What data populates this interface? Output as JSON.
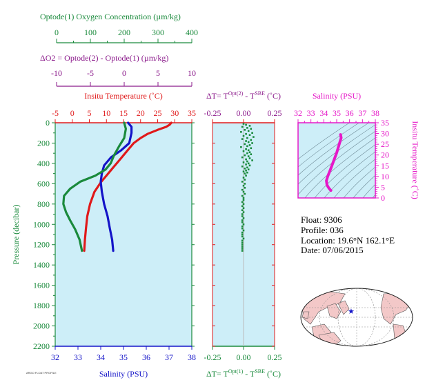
{
  "info": {
    "float": "Float: 9306",
    "profile": "Profile: 036",
    "location": "Location: 19.6°N 162.1°E",
    "date": "Date: 07/06/2015"
  },
  "footer_text": "ARGO FLOAT PROFILE",
  "colors": {
    "oxygen": "#1a8a3c",
    "delta_o2": "#8b1a8b",
    "temperature": "#e0191a",
    "salinity": "#1414c8",
    "inset": "#e619c8",
    "panel_bg": "#cdeef8",
    "map_land": "#f3c8c8",
    "map_ocean": "#ffffff"
  },
  "chart_data": [
    {
      "type": "line",
      "title": "",
      "ylabel": "Pressure (decibar)",
      "ylim": [
        2200,
        0
      ],
      "yticks": [
        0,
        200,
        400,
        600,
        800,
        1000,
        1200,
        1400,
        1600,
        1800,
        2000,
        2200
      ],
      "axes": {
        "oxygen": {
          "label": "Optode(1) Oxygen Concentration (µm/kg)",
          "lim": [
            0,
            400
          ],
          "ticks": [
            0,
            100,
            200,
            300,
            400
          ]
        },
        "delta_o2": {
          "label": "ΔO2 = Optode(2) - Optode(1)  (µm/kg)",
          "lim": [
            -10,
            10
          ],
          "ticks": [
            -10,
            -5,
            0,
            5,
            10
          ]
        },
        "temperature": {
          "label": "Insitu Temperature (˚C)",
          "lim": [
            -5,
            35
          ],
          "ticks": [
            -5,
            0,
            5,
            10,
            15,
            20,
            25,
            30,
            35
          ]
        },
        "salinity": {
          "label": "Salinity (PSU)",
          "lim": [
            32,
            38
          ],
          "ticks": [
            32,
            33,
            34,
            35,
            36,
            37,
            38
          ]
        }
      },
      "series": [
        {
          "name": "Insitu Temperature (˚C)",
          "axis": "temperature",
          "points": [
            [
              29,
              0
            ],
            [
              28.5,
              20
            ],
            [
              27.5,
              40
            ],
            [
              25,
              70
            ],
            [
              22,
              110
            ],
            [
              20,
              150
            ],
            [
              18,
              200
            ],
            [
              16,
              280
            ],
            [
              14,
              360
            ],
            [
              12,
              440
            ],
            [
              10,
              520
            ],
            [
              8.5,
              580
            ],
            [
              6.5,
              680
            ],
            [
              5.2,
              800
            ],
            [
              4.4,
              920
            ],
            [
              4.0,
              1040
            ],
            [
              3.7,
              1150
            ],
            [
              3.5,
              1260
            ]
          ]
        },
        {
          "name": "Salinity (PSU)",
          "axis": "salinity",
          "points": [
            [
              35.2,
              0
            ],
            [
              35.35,
              40
            ],
            [
              35.35,
              100
            ],
            [
              35.25,
              200
            ],
            [
              34.9,
              270
            ],
            [
              34.45,
              340
            ],
            [
              34.15,
              420
            ],
            [
              34.05,
              500
            ],
            [
              34.0,
              580
            ],
            [
              34.05,
              680
            ],
            [
              34.15,
              800
            ],
            [
              34.3,
              920
            ],
            [
              34.4,
              1040
            ],
            [
              34.5,
              1150
            ],
            [
              34.55,
              1260
            ]
          ]
        },
        {
          "name": "Optode(1) Oxygen Concentration (µm/kg)",
          "axis": "oxygen",
          "points": [
            [
              200,
              0
            ],
            [
              205,
              60
            ],
            [
              200,
              150
            ],
            [
              185,
              230
            ],
            [
              170,
              320
            ],
            [
              160,
              400
            ],
            [
              145,
              460
            ],
            [
              115,
              520
            ],
            [
              70,
              580
            ],
            [
              40,
              650
            ],
            [
              22,
              720
            ],
            [
              20,
              800
            ],
            [
              28,
              880
            ],
            [
              40,
              960
            ],
            [
              55,
              1050
            ],
            [
              68,
              1150
            ],
            [
              75,
              1260
            ]
          ]
        }
      ]
    },
    {
      "type": "scatter",
      "title": "ΔT= T^Opt(2) - T^SBE (˚C)",
      "xlabel": "ΔT= T^Opt(1) - T^SBE (˚C)",
      "xlim": [
        -0.25,
        0.25
      ],
      "xticks": [
        -0.25,
        0.0,
        0.25
      ],
      "ylim": [
        2200,
        0
      ],
      "points": [
        [
          0.0,
          10
        ],
        [
          0.02,
          20
        ],
        [
          0.05,
          30
        ],
        [
          -0.01,
          40
        ],
        [
          0.03,
          50
        ],
        [
          0.06,
          60
        ],
        [
          0.01,
          70
        ],
        [
          0.04,
          80
        ],
        [
          -0.02,
          90
        ],
        [
          0.07,
          100
        ],
        [
          0.02,
          110
        ],
        [
          0.05,
          120
        ],
        [
          0.0,
          130
        ],
        [
          0.08,
          140
        ],
        [
          0.03,
          150
        ],
        [
          -0.01,
          160
        ],
        [
          0.06,
          170
        ],
        [
          0.02,
          180
        ],
        [
          0.04,
          190
        ],
        [
          0.07,
          200
        ],
        [
          0.01,
          210
        ],
        [
          0.05,
          220
        ],
        [
          0.03,
          230
        ],
        [
          -0.02,
          240
        ],
        [
          0.06,
          250
        ],
        [
          0.02,
          260
        ],
        [
          0.04,
          270
        ],
        [
          0.0,
          280
        ],
        [
          0.05,
          290
        ],
        [
          0.03,
          300
        ],
        [
          0.06,
          310
        ],
        [
          0.01,
          320
        ],
        [
          0.04,
          330
        ],
        [
          -0.01,
          340
        ],
        [
          0.05,
          350
        ],
        [
          0.02,
          360
        ],
        [
          0.07,
          370
        ],
        [
          0.03,
          380
        ],
        [
          0.0,
          390
        ],
        [
          0.04,
          400
        ],
        [
          0.02,
          410
        ],
        [
          0.05,
          420
        ],
        [
          -0.01,
          430
        ],
        [
          0.03,
          440
        ],
        [
          0.01,
          450
        ],
        [
          0.04,
          460
        ],
        [
          0.02,
          470
        ],
        [
          0.0,
          480
        ],
        [
          0.03,
          490
        ],
        [
          0.01,
          500
        ],
        [
          0.02,
          520
        ],
        [
          0.0,
          540
        ],
        [
          0.01,
          560
        ],
        [
          -0.01,
          580
        ],
        [
          0.01,
          600
        ],
        [
          0.0,
          620
        ],
        [
          0.01,
          640
        ],
        [
          -0.01,
          660
        ],
        [
          0.0,
          680
        ],
        [
          0.01,
          700
        ],
        [
          -0.01,
          720
        ],
        [
          0.0,
          740
        ],
        [
          0.0,
          760
        ],
        [
          -0.01,
          780
        ],
        [
          0.0,
          800
        ],
        [
          -0.01,
          820
        ],
        [
          0.0,
          840
        ],
        [
          -0.01,
          860
        ],
        [
          0.0,
          880
        ],
        [
          -0.01,
          900
        ],
        [
          -0.01,
          920
        ],
        [
          0.0,
          940
        ],
        [
          -0.01,
          960
        ],
        [
          -0.01,
          980
        ],
        [
          0.0,
          1000
        ],
        [
          -0.01,
          1020
        ],
        [
          -0.01,
          1040
        ],
        [
          0.0,
          1060
        ],
        [
          -0.01,
          1080
        ],
        [
          -0.01,
          1100
        ],
        [
          -0.01,
          1120
        ],
        [
          0.0,
          1140
        ],
        [
          -0.01,
          1160
        ],
        [
          -0.01,
          1180
        ],
        [
          -0.01,
          1200
        ],
        [
          -0.01,
          1220
        ],
        [
          -0.01,
          1240
        ],
        [
          -0.01,
          1260
        ]
      ]
    },
    {
      "type": "line",
      "title": "Salinity (PSU)",
      "ylabel": "Insitu Temperature (˚C)",
      "xlim": [
        32,
        38
      ],
      "xticks": [
        32,
        33,
        34,
        35,
        36,
        37,
        38
      ],
      "ylim": [
        0,
        35
      ],
      "yticks": [
        0,
        5,
        10,
        15,
        20,
        25,
        30,
        35
      ],
      "series": [
        {
          "name": "T-S",
          "points": [
            [
              34.55,
              3.5
            ],
            [
              34.4,
              4.5
            ],
            [
              34.25,
              6
            ],
            [
              34.2,
              8
            ],
            [
              34.3,
              10
            ],
            [
              34.5,
              13
            ],
            [
              34.75,
              17
            ],
            [
              35.0,
              21
            ],
            [
              35.2,
              25
            ],
            [
              35.35,
              28
            ],
            [
              35.3,
              29.5
            ]
          ]
        }
      ]
    }
  ]
}
